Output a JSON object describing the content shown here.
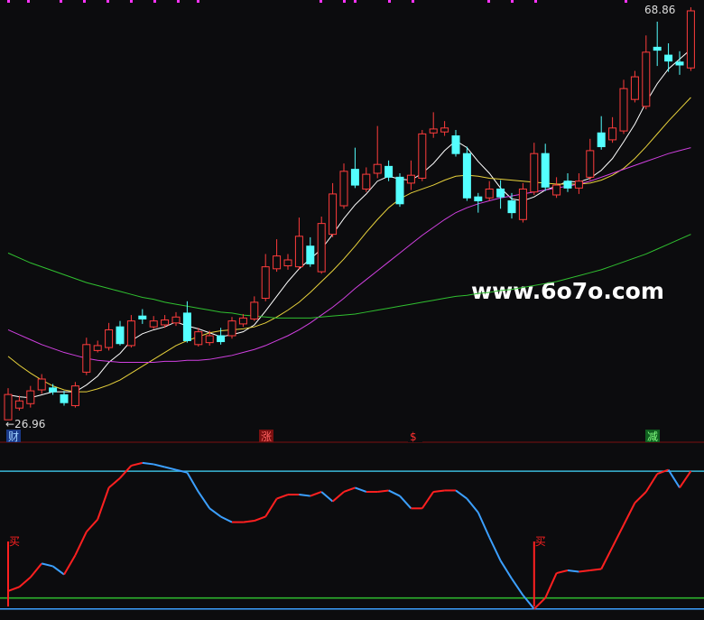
{
  "chart_data": [
    {
      "type": "candlestick",
      "ylim": [
        25.6,
        69.6
      ],
      "up_color": "#ff3c3c",
      "down_color": "#54ffff",
      "open": [
        26.96,
        28.15,
        28.6,
        30.0,
        30.2,
        29.5,
        28.4,
        31.8,
        34.0,
        34.3,
        36.4,
        34.5,
        37.5,
        36.4,
        36.6,
        36.8,
        37.8,
        34.6,
        34.8,
        35.5,
        35.5,
        36.7,
        37.2,
        39.3,
        42.3,
        42.6,
        42.5,
        44.6,
        42.0,
        45.8,
        48.7,
        52.4,
        50.4,
        52.0,
        52.7,
        51.6,
        51.0,
        51.5,
        56.1,
        56.2,
        55.8,
        54.0,
        49.6,
        49.5,
        50.4,
        49.2,
        47.3,
        50.1,
        54.0,
        49.8,
        51.2,
        50.5,
        51.6,
        56.1,
        55.4,
        56.3,
        59.5,
        58.8,
        64.8,
        64.0,
        63.3,
        62.7
      ],
      "high": [
        30.17,
        29.4,
        30.4,
        31.6,
        30.6,
        29.9,
        30.8,
        35.3,
        35.0,
        36.8,
        37.0,
        37.6,
        38.2,
        37.5,
        37.6,
        37.9,
        39.0,
        36.3,
        36.0,
        36.3,
        37.4,
        37.7,
        39.5,
        43.8,
        45.3,
        43.8,
        47.5,
        45.5,
        47.6,
        51.0,
        53.0,
        54.6,
        52.6,
        56.8,
        53.3,
        52.0,
        53.3,
        56.4,
        58.2,
        57.3,
        56.4,
        54.7,
        50.0,
        51.2,
        51.3,
        50.0,
        51.0,
        55.1,
        55.0,
        51.6,
        52.0,
        52.0,
        55.5,
        57.8,
        57.7,
        61.5,
        62.4,
        66.0,
        67.4,
        65.2,
        64.4,
        68.86
      ],
      "low": [
        26.96,
        27.9,
        28.2,
        29.6,
        29.5,
        28.4,
        28.2,
        31.5,
        33.8,
        34.0,
        34.5,
        34.3,
        36.7,
        36.2,
        36.3,
        36.5,
        34.8,
        34.4,
        34.5,
        34.6,
        35.2,
        36.4,
        37.0,
        39.0,
        42.0,
        42.2,
        42.2,
        42.5,
        41.8,
        45.5,
        48.4,
        50.5,
        50.1,
        51.5,
        51.2,
        48.6,
        50.3,
        51.2,
        55.6,
        55.8,
        53.7,
        49.2,
        48.0,
        49.2,
        48.4,
        47.4,
        47.0,
        49.8,
        50.2,
        49.5,
        50.1,
        49.9,
        51.3,
        54.4,
        55.1,
        56.0,
        59.2,
        58.5,
        62.9,
        62.3,
        62.0,
        62.4
      ],
      "close": [
        29.53,
        28.88,
        29.9,
        31.1,
        29.8,
        28.7,
        30.4,
        34.6,
        34.5,
        36.1,
        34.7,
        37.0,
        37.2,
        37.0,
        37.1,
        37.4,
        35.0,
        35.9,
        35.5,
        34.9,
        37.0,
        37.3,
        38.9,
        42.5,
        43.6,
        43.2,
        45.6,
        42.8,
        46.9,
        49.9,
        52.2,
        50.8,
        51.9,
        52.9,
        51.6,
        48.9,
        51.8,
        56.0,
        56.5,
        56.6,
        54.0,
        49.5,
        49.2,
        50.4,
        49.6,
        48.0,
        50.4,
        54.0,
        50.6,
        50.8,
        50.5,
        51.2,
        54.3,
        54.7,
        56.6,
        60.6,
        61.8,
        64.3,
        64.5,
        63.4,
        63.0,
        68.5
      ],
      "series": [
        {
          "color": "#ffffff",
          "values": [
            29.5,
            29.3,
            29.2,
            29.5,
            29.8,
            29.8,
            29.8,
            30.5,
            31.4,
            32.8,
            33.7,
            35.0,
            35.7,
            36.1,
            36.4,
            36.9,
            36.5,
            36.2,
            35.8,
            35.4,
            35.6,
            35.9,
            36.6,
            38.0,
            39.5,
            41.0,
            42.3,
            43.3,
            44.3,
            45.8,
            47.4,
            48.8,
            49.9,
            51.2,
            51.7,
            51.4,
            51.3,
            52.0,
            53.0,
            54.3,
            55.3,
            54.6,
            53.2,
            52.0,
            50.5,
            49.4,
            49.2,
            49.6,
            50.3,
            50.7,
            51.2,
            51.1,
            51.5,
            52.3,
            53.5,
            55.2,
            57.0,
            59.2,
            61.1,
            62.6,
            63.6,
            64.6
          ]
        },
        {
          "color": "#e8d23c",
          "values": [
            33.4,
            32.5,
            31.7,
            31.0,
            30.4,
            30.0,
            29.8,
            29.8,
            30.1,
            30.5,
            31.0,
            31.7,
            32.4,
            33.1,
            33.8,
            34.5,
            35.0,
            35.4,
            35.8,
            36.0,
            36.1,
            36.2,
            36.4,
            36.8,
            37.4,
            38.1,
            38.9,
            39.9,
            41.0,
            42.1,
            43.3,
            44.6,
            46.0,
            47.3,
            48.5,
            49.4,
            50.0,
            50.4,
            50.8,
            51.3,
            51.7,
            51.8,
            51.7,
            51.5,
            51.4,
            51.3,
            51.2,
            51.1,
            51.0,
            50.9,
            50.9,
            50.9,
            51.0,
            51.3,
            51.8,
            52.5,
            53.5,
            54.7,
            56.0,
            57.3,
            58.5,
            59.7
          ]
        },
        {
          "color": "#d040e0",
          "values": [
            36.1,
            35.6,
            35.1,
            34.6,
            34.2,
            33.8,
            33.5,
            33.2,
            33.0,
            32.9,
            32.8,
            32.8,
            32.8,
            32.8,
            32.9,
            32.9,
            33.0,
            33.0,
            33.1,
            33.3,
            33.5,
            33.8,
            34.1,
            34.5,
            35.0,
            35.5,
            36.1,
            36.8,
            37.6,
            38.4,
            39.3,
            40.3,
            41.2,
            42.1,
            43.0,
            43.9,
            44.8,
            45.7,
            46.5,
            47.3,
            48.0,
            48.5,
            48.9,
            49.2,
            49.5,
            49.7,
            49.9,
            50.1,
            50.3,
            50.5,
            50.7,
            50.9,
            51.2,
            51.6,
            52.0,
            52.4,
            52.8,
            53.2,
            53.6,
            54.0,
            54.3,
            54.6
          ]
        },
        {
          "color": "#30c030",
          "values": [
            43.9,
            43.4,
            42.9,
            42.5,
            42.1,
            41.7,
            41.3,
            40.9,
            40.6,
            40.3,
            40.0,
            39.7,
            39.4,
            39.2,
            38.9,
            38.7,
            38.5,
            38.3,
            38.1,
            37.9,
            37.8,
            37.6,
            37.5,
            37.4,
            37.3,
            37.3,
            37.3,
            37.3,
            37.4,
            37.5,
            37.6,
            37.7,
            37.9,
            38.1,
            38.3,
            38.5,
            38.7,
            38.9,
            39.1,
            39.3,
            39.5,
            39.6,
            39.8,
            39.9,
            40.1,
            40.2,
            40.4,
            40.6,
            40.8,
            41.0,
            41.3,
            41.6,
            41.9,
            42.2,
            42.6,
            43.0,
            43.4,
            43.8,
            44.3,
            44.8,
            45.3,
            45.8
          ]
        }
      ],
      "annotations": [
        "68.86",
        "←26.96"
      ],
      "markers": [
        "财",
        "涨",
        "$",
        "减"
      ],
      "watermark": "www.6o7o.com"
    },
    {
      "type": "line",
      "ylim": [
        -8,
        121
      ],
      "rise_color": "#ff2020",
      "fall_color": "#3ca0ff",
      "values": [
        13,
        16,
        23,
        33,
        31,
        25,
        39,
        56,
        65,
        88,
        95,
        104,
        106,
        105,
        103,
        101,
        99,
        85,
        73,
        67,
        63,
        63,
        64,
        67,
        80,
        83,
        83,
        82,
        85,
        78,
        85,
        88,
        85,
        85,
        86,
        82,
        73,
        73,
        85,
        86,
        86,
        80,
        70,
        52,
        35,
        22,
        10,
        0,
        8,
        26,
        28,
        27,
        28,
        29,
        45,
        61,
        77,
        85,
        98,
        101,
        88,
        100
      ],
      "levels": [
        {
          "value": 100,
          "color": "#3ab8d8"
        },
        {
          "value": 8,
          "color": "#30c030"
        },
        {
          "value": 0,
          "color": "#3ca0ff"
        }
      ],
      "signals": [
        "买",
        "买"
      ]
    }
  ]
}
